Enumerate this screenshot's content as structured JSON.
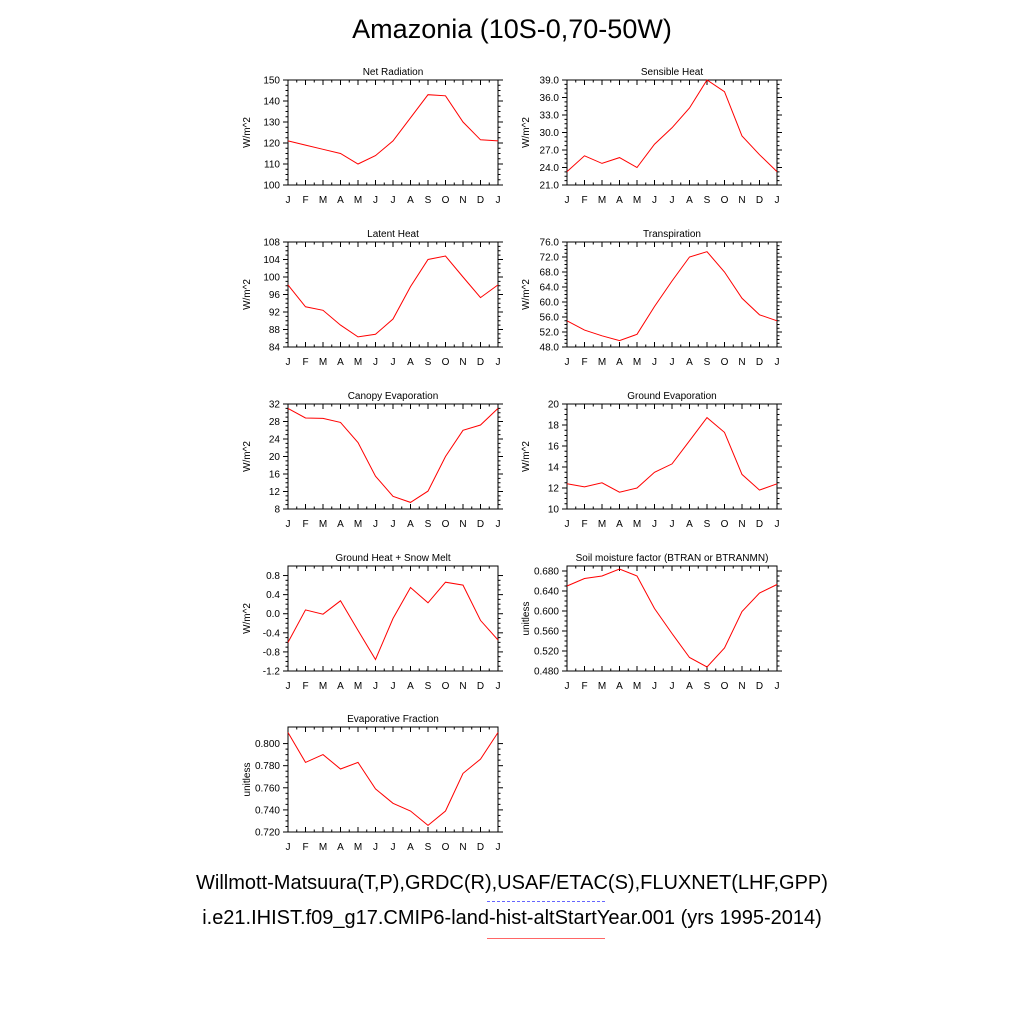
{
  "page": {
    "title": "Amazonia (10S-0,70-50W)",
    "legend": [
      {
        "label": "Willmott-Matsuura(T,P),GRDC(R),USAF/ETAC(S),FLUXNET(LHF,GPP)",
        "color": "#6666ff",
        "style": "dashed"
      },
      {
        "label": "i.e21.IHIST.f09_g17.CMIP6-land-hist-altStartYear.001 (yrs 1995-2014)",
        "color": "#ff0000",
        "style": "solid"
      }
    ]
  },
  "chart_data": [
    {
      "type": "line",
      "title": "Net Radiation",
      "ylabel": "W/m^2",
      "categories": [
        "J",
        "F",
        "M",
        "A",
        "M",
        "J",
        "J",
        "A",
        "S",
        "O",
        "N",
        "D",
        "J"
      ],
      "ylim": [
        100,
        150
      ],
      "yticks": [
        "100",
        "110",
        "120",
        "130",
        "140",
        "150"
      ],
      "series": [
        {
          "values": [
            121,
            119,
            117,
            115,
            110,
            114,
            121,
            132,
            143,
            142.5,
            130,
            121.5,
            121
          ],
          "color": "#ff0000"
        }
      ]
    },
    {
      "type": "line",
      "title": "Sensible Heat",
      "ylabel": "W/m^2",
      "categories": [
        "J",
        "F",
        "M",
        "A",
        "M",
        "J",
        "J",
        "A",
        "S",
        "O",
        "N",
        "D",
        "J"
      ],
      "ylim": [
        21,
        39
      ],
      "yticks": [
        "21.0",
        "24.0",
        "27.0",
        "30.0",
        "33.0",
        "36.0",
        "39.0"
      ],
      "series": [
        {
          "values": [
            23.3,
            26,
            24.7,
            25.7,
            24,
            28,
            30.8,
            34.2,
            39,
            37,
            29.4,
            26.2,
            23.3
          ],
          "color": "#ff0000"
        }
      ]
    },
    {
      "type": "line",
      "title": "Latent Heat",
      "ylabel": "W/m^2",
      "categories": [
        "J",
        "F",
        "M",
        "A",
        "M",
        "J",
        "J",
        "A",
        "S",
        "O",
        "N",
        "D",
        "J"
      ],
      "ylim": [
        84,
        108
      ],
      "yticks": [
        "84",
        "88",
        "92",
        "96",
        "100",
        "104",
        "108"
      ],
      "series": [
        {
          "values": [
            98.2,
            93.2,
            92.4,
            89,
            86.3,
            86.9,
            90.4,
            97.8,
            104,
            104.8,
            100,
            95.3,
            98.2
          ],
          "color": "#ff0000"
        }
      ]
    },
    {
      "type": "line",
      "title": "Transpiration",
      "ylabel": "W/m^2",
      "categories": [
        "J",
        "F",
        "M",
        "A",
        "M",
        "J",
        "J",
        "A",
        "S",
        "O",
        "N",
        "D",
        "J"
      ],
      "ylim": [
        48,
        76
      ],
      "yticks": [
        "48.0",
        "52.0",
        "56.0",
        "60.0",
        "64.0",
        "68.0",
        "72.0",
        "76.0"
      ],
      "series": [
        {
          "values": [
            55,
            52.5,
            51,
            49.7,
            51.4,
            58.8,
            65.6,
            72,
            73.4,
            68,
            61,
            56.6,
            55
          ],
          "color": "#ff0000"
        }
      ]
    },
    {
      "type": "line",
      "title": "Canopy Evaporation",
      "ylabel": "W/m^2",
      "categories": [
        "J",
        "F",
        "M",
        "A",
        "M",
        "J",
        "J",
        "A",
        "S",
        "O",
        "N",
        "D",
        "J"
      ],
      "ylim": [
        8,
        32
      ],
      "yticks": [
        "8",
        "12",
        "16",
        "20",
        "24",
        "28",
        "32"
      ],
      "series": [
        {
          "values": [
            31,
            28.8,
            28.7,
            27.8,
            23.2,
            15.5,
            10.9,
            9.5,
            12.1,
            20,
            26,
            27.2,
            31
          ],
          "color": "#ff0000"
        }
      ]
    },
    {
      "type": "line",
      "title": "Ground Evaporation",
      "ylabel": "W/m^2",
      "categories": [
        "J",
        "F",
        "M",
        "A",
        "M",
        "J",
        "J",
        "A",
        "S",
        "O",
        "N",
        "D",
        "J"
      ],
      "ylim": [
        10,
        20
      ],
      "yticks": [
        "10",
        "12",
        "14",
        "16",
        "18",
        "20"
      ],
      "series": [
        {
          "values": [
            12.4,
            12.1,
            12.5,
            11.6,
            12.0,
            13.5,
            14.3,
            16.5,
            18.7,
            17.3,
            13.3,
            11.8,
            12.4
          ],
          "color": "#ff0000"
        }
      ]
    },
    {
      "type": "line",
      "title": "Ground Heat + Snow Melt",
      "ylabel": "W/m^2",
      "categories": [
        "J",
        "F",
        "M",
        "A",
        "M",
        "J",
        "J",
        "A",
        "S",
        "O",
        "N",
        "D",
        "J"
      ],
      "ylim": [
        -1.2,
        1.0
      ],
      "yticks": [
        "-1.2",
        "-0.8",
        "-0.4",
        "0.0",
        "0.4",
        "0.8"
      ],
      "series": [
        {
          "values": [
            -0.6,
            0.08,
            -0.01,
            0.27,
            -0.35,
            -0.96,
            -0.1,
            0.55,
            0.23,
            0.66,
            0.6,
            -0.14,
            -0.55
          ],
          "color": "#ff0000"
        }
      ]
    },
    {
      "type": "line",
      "title": "Soil moisture factor (BTRAN or BTRANMN)",
      "ylabel": "unitless",
      "categories": [
        "J",
        "F",
        "M",
        "A",
        "M",
        "J",
        "J",
        "A",
        "S",
        "O",
        "N",
        "D",
        "J"
      ],
      "ylim": [
        0.48,
        0.69
      ],
      "yticks": [
        "0.480",
        "0.520",
        "0.560",
        "0.600",
        "0.640",
        "0.680"
      ],
      "series": [
        {
          "values": [
            0.65,
            0.665,
            0.67,
            0.684,
            0.67,
            0.605,
            0.555,
            0.507,
            0.488,
            0.526,
            0.599,
            0.636,
            0.653
          ],
          "color": "#ff0000"
        }
      ]
    },
    {
      "type": "line",
      "title": "Evaporative Fraction",
      "ylabel": "unitless",
      "categories": [
        "J",
        "F",
        "M",
        "A",
        "M",
        "J",
        "J",
        "A",
        "S",
        "O",
        "N",
        "D",
        "J"
      ],
      "ylim": [
        0.72,
        0.815
      ],
      "yticks": [
        "0.720",
        "0.740",
        "0.760",
        "0.780",
        "0.800"
      ],
      "series": [
        {
          "values": [
            0.81,
            0.783,
            0.79,
            0.777,
            0.783,
            0.759,
            0.746,
            0.739,
            0.726,
            0.739,
            0.773,
            0.786,
            0.81
          ],
          "color": "#ff0000"
        }
      ]
    }
  ]
}
